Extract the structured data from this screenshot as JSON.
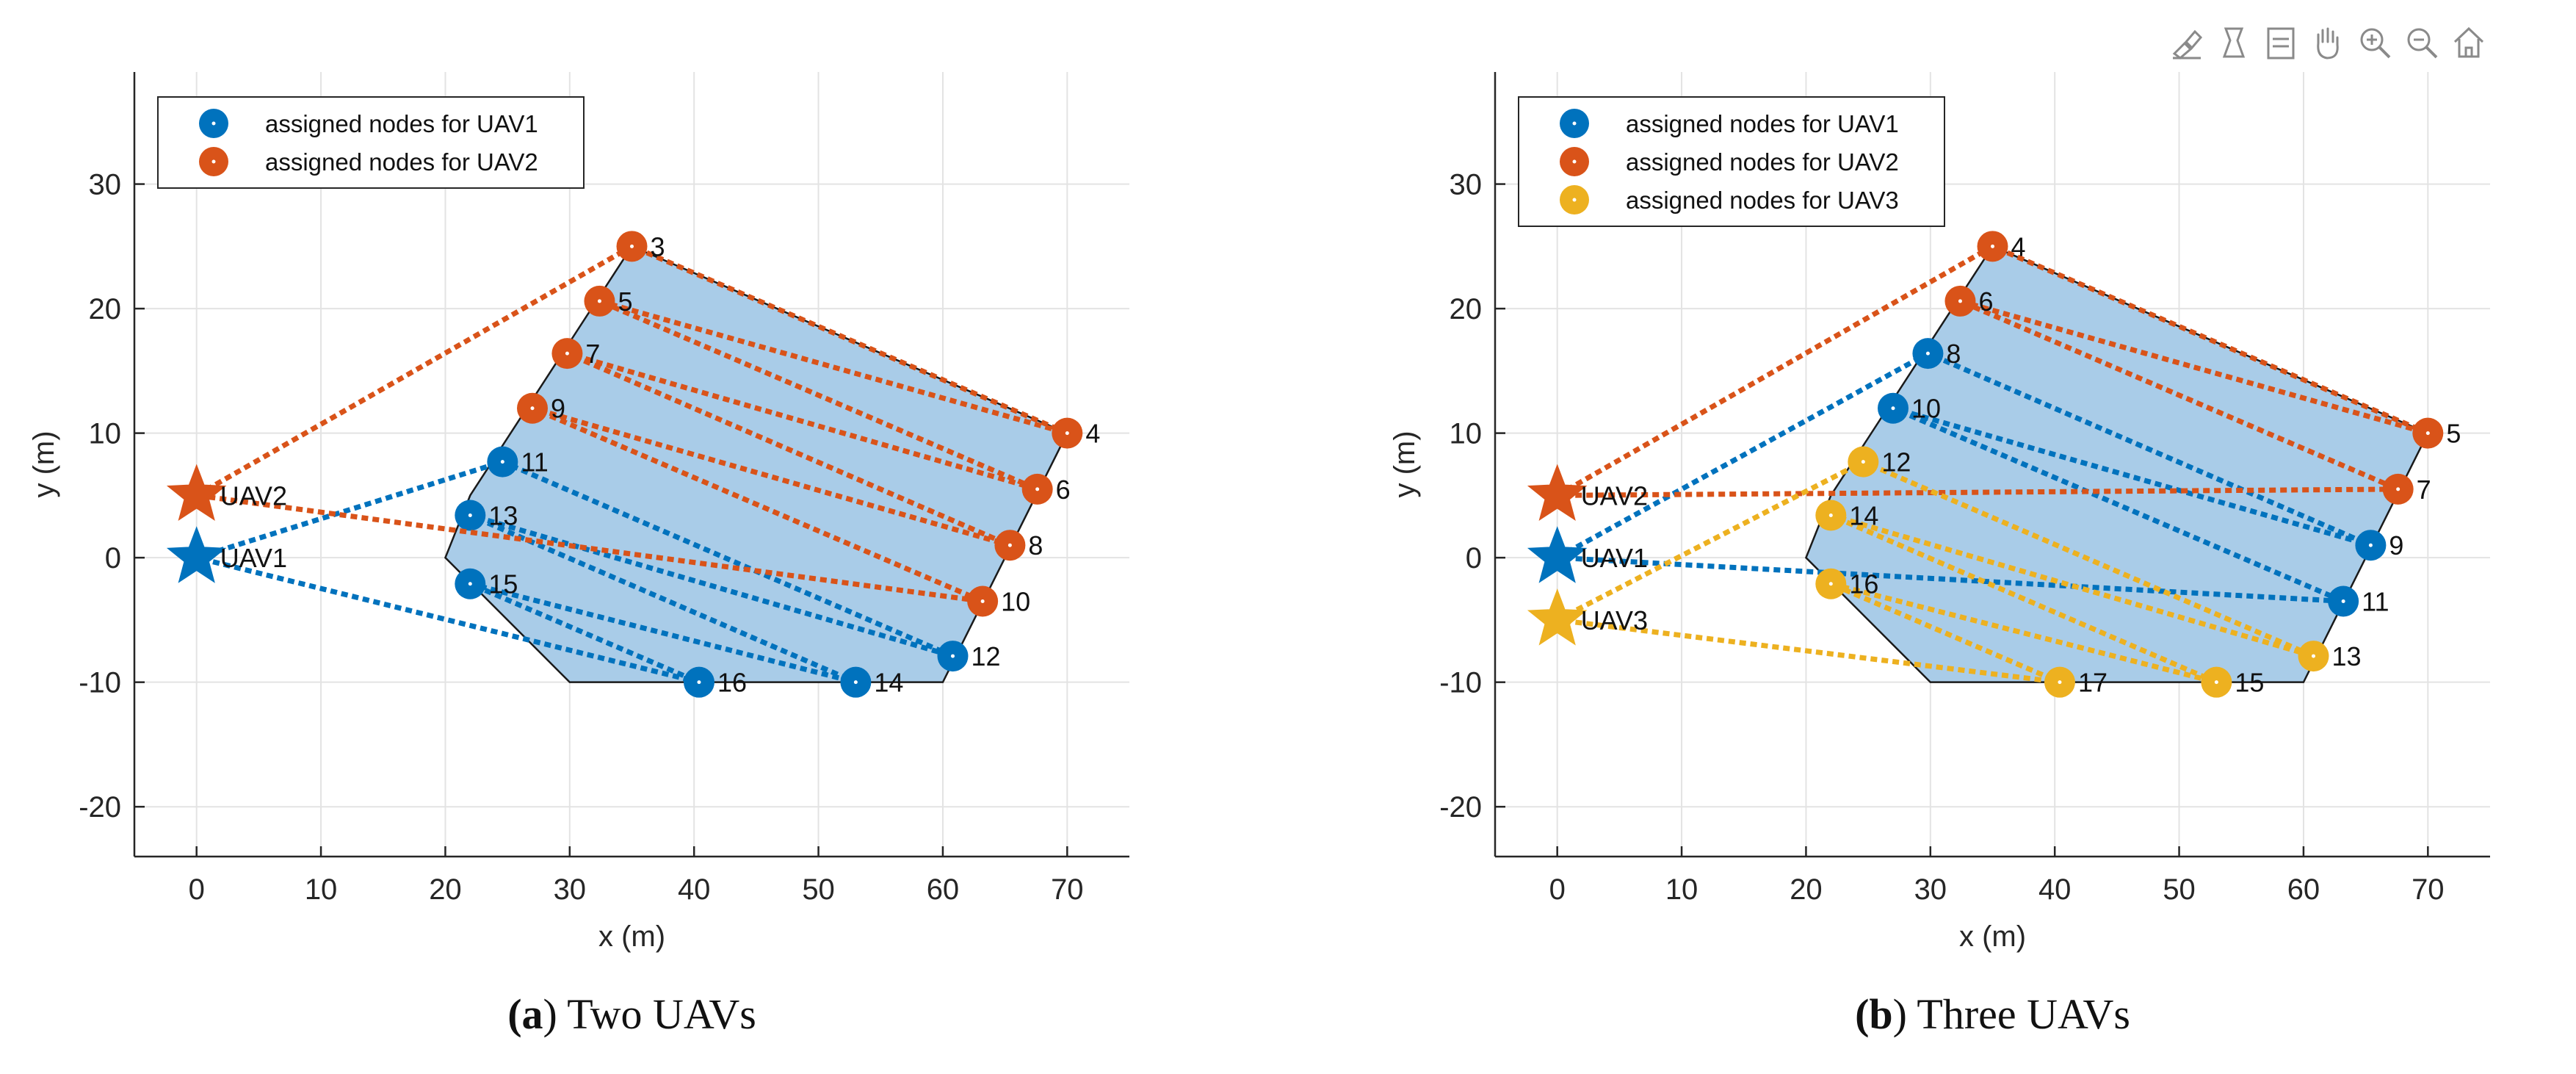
{
  "chart_data": [
    {
      "type": "scatter",
      "xlabel": "x (m)",
      "ylabel": "y (m)",
      "xlim": [
        -5,
        75
      ],
      "ylim": [
        -24,
        39
      ],
      "xticks": [
        0,
        10,
        20,
        30,
        40,
        50,
        60,
        70
      ],
      "yticks": [
        -20,
        -10,
        0,
        10,
        20,
        30
      ],
      "grid": true,
      "legend_location": "top-left",
      "caption": {
        "label": "(a)",
        "text": "Two UAVs"
      },
      "region": [
        [
          35,
          25
        ],
        [
          70,
          10
        ],
        [
          60,
          -10
        ],
        [
          30,
          -10
        ],
        [
          20,
          0
        ],
        [
          22,
          5
        ],
        [
          35,
          25
        ]
      ],
      "colors": {
        "UAV1": "#0072BD",
        "UAV2": "#D95319",
        "region": "#A9CCE8"
      },
      "series": [
        {
          "name": "assigned nodes for UAV1",
          "uav": "UAV1",
          "start": {
            "label": "UAV1",
            "x": 0,
            "y": 0
          },
          "nodes": [
            {
              "id": "11",
              "x": 24.6,
              "y": 7.7
            },
            {
              "id": "12",
              "x": 60.8,
              "y": -7.9
            },
            {
              "id": "13",
              "x": 22.0,
              "y": 3.4
            },
            {
              "id": "14",
              "x": 53.0,
              "y": -10.0
            },
            {
              "id": "15",
              "x": 22.0,
              "y": -2.1
            },
            {
              "id": "16",
              "x": 40.4,
              "y": -10.0
            }
          ]
        },
        {
          "name": "assigned nodes for UAV2",
          "uav": "UAV2",
          "start": {
            "label": "UAV2",
            "x": 0,
            "y": 5
          },
          "nodes": [
            {
              "id": "3",
              "x": 35.0,
              "y": 25.0
            },
            {
              "id": "4",
              "x": 70.0,
              "y": 10.0
            },
            {
              "id": "5",
              "x": 32.4,
              "y": 20.6
            },
            {
              "id": "6",
              "x": 67.6,
              "y": 5.5
            },
            {
              "id": "7",
              "x": 29.8,
              "y": 16.4
            },
            {
              "id": "8",
              "x": 65.4,
              "y": 1.0
            },
            {
              "id": "9",
              "x": 27.0,
              "y": 12.0
            },
            {
              "id": "10",
              "x": 63.2,
              "y": -3.5
            }
          ]
        }
      ]
    },
    {
      "type": "scatter",
      "xlabel": "x (m)",
      "ylabel": "y (m)",
      "xlim": [
        -5,
        75
      ],
      "ylim": [
        -24,
        39
      ],
      "xticks": [
        0,
        10,
        20,
        30,
        40,
        50,
        60,
        70
      ],
      "yticks": [
        -20,
        -10,
        0,
        10,
        20,
        30
      ],
      "grid": true,
      "legend_location": "top-left",
      "caption": {
        "label": "(b)",
        "text": "Three UAVs"
      },
      "region": [
        [
          35,
          25
        ],
        [
          70,
          10
        ],
        [
          60,
          -10
        ],
        [
          30,
          -10
        ],
        [
          20,
          0
        ],
        [
          22,
          5
        ],
        [
          35,
          25
        ]
      ],
      "colors": {
        "UAV1": "#0072BD",
        "UAV2": "#D95319",
        "UAV3": "#EDB120",
        "region": "#A9CCE8"
      },
      "series": [
        {
          "name": "assigned nodes for UAV1",
          "uav": "UAV1",
          "start": {
            "label": "UAV1",
            "x": 0,
            "y": 0
          },
          "nodes": [
            {
              "id": "8",
              "x": 29.8,
              "y": 16.4
            },
            {
              "id": "9",
              "x": 65.4,
              "y": 1.0
            },
            {
              "id": "10",
              "x": 27.0,
              "y": 12.0
            },
            {
              "id": "11",
              "x": 63.2,
              "y": -3.5
            }
          ]
        },
        {
          "name": "assigned nodes for UAV2",
          "uav": "UAV2",
          "start": {
            "label": "UAV2",
            "x": 0,
            "y": 5
          },
          "nodes": [
            {
              "id": "4",
              "x": 35.0,
              "y": 25.0
            },
            {
              "id": "5",
              "x": 70.0,
              "y": 10.0
            },
            {
              "id": "6",
              "x": 32.4,
              "y": 20.6
            },
            {
              "id": "7",
              "x": 67.6,
              "y": 5.5
            }
          ]
        },
        {
          "name": "assigned nodes for UAV3",
          "uav": "UAV3",
          "start": {
            "label": "UAV3",
            "x": 0,
            "y": -5
          },
          "nodes": [
            {
              "id": "12",
              "x": 24.6,
              "y": 7.7
            },
            {
              "id": "13",
              "x": 60.8,
              "y": -7.9
            },
            {
              "id": "14",
              "x": 22.0,
              "y": 3.4
            },
            {
              "id": "15",
              "x": 53.0,
              "y": -10.0
            },
            {
              "id": "16",
              "x": 22.0,
              "y": -2.1
            },
            {
              "id": "17",
              "x": 40.4,
              "y": -10.0
            }
          ]
        }
      ]
    }
  ],
  "toolbar": {
    "icons": [
      "brush-edit-icon",
      "data-cursor-icon",
      "legend-toggle-icon",
      "pan-hand-icon",
      "zoom-in-icon",
      "zoom-out-icon",
      "home-icon"
    ]
  }
}
